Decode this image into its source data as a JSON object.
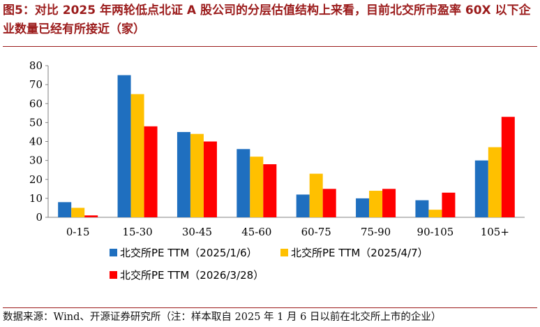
{
  "title": "图5：对比 2025 年两轮低点北证 A 股公司的分层估值结构上来看，目前北交所市盈率 60X 以下企业数量已经有所接近（家）",
  "source": "数据来源：Wind、开源证券研究所（注：样本取自 2025 年 1 月 6 日以前在北交所上市的企业）",
  "chart_data": {
    "type": "bar",
    "categories": [
      "0-15",
      "15-30",
      "30-45",
      "45-60",
      "60-75",
      "75-90",
      "90-105",
      "105+"
    ],
    "series": [
      {
        "name": "北交所PE TTM（2025/1/6）",
        "color": "#1f6fbf",
        "values": [
          8,
          75,
          45,
          36,
          12,
          10,
          9,
          30
        ]
      },
      {
        "name": "北交所PE TTM（2025/4/7）",
        "color": "#ffc000",
        "values": [
          5,
          65,
          44,
          32,
          23,
          14,
          4,
          37
        ]
      },
      {
        "name": "北交所PE TTM（2026/3/28）",
        "color": "#ff0000",
        "values": [
          1,
          48,
          40,
          28,
          15,
          15,
          13,
          53
        ]
      }
    ],
    "yticks": [
      "0",
      "10",
      "20",
      "30",
      "40",
      "50",
      "60",
      "70",
      "80"
    ],
    "ylim": [
      0,
      80
    ],
    "legend_position": "bottom",
    "grid": false
  }
}
